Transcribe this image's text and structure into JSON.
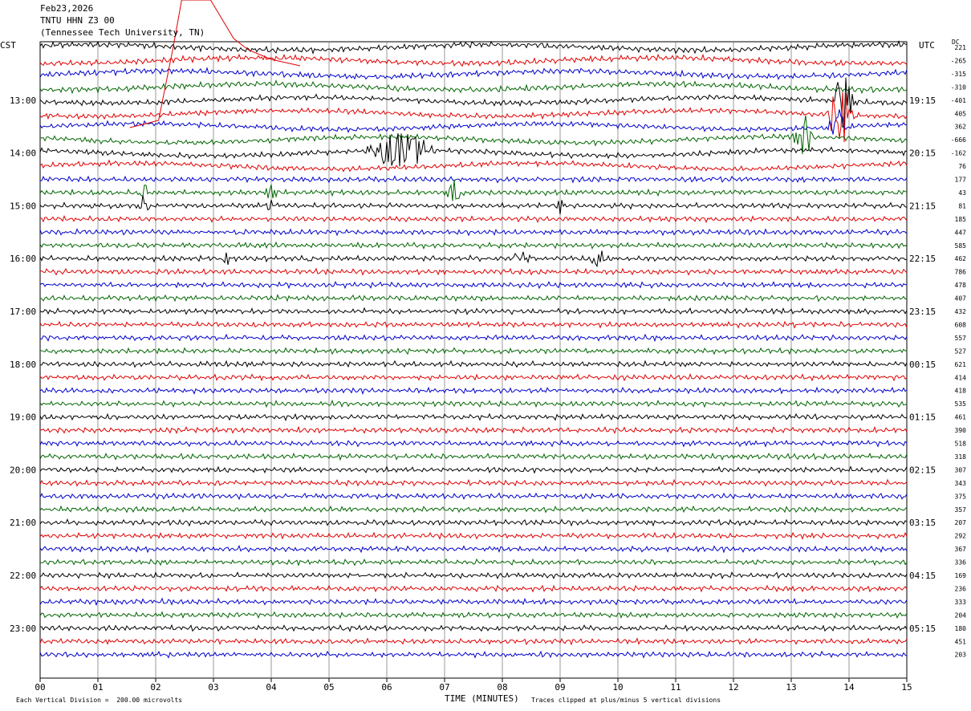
{
  "header": {
    "date": "Feb23,2026",
    "station": "TNTU HHN Z3 00",
    "location": "(Tennessee Tech University, TN)"
  },
  "axes": {
    "left_tz": "CST",
    "right_tz": "UTC",
    "dc_label": "DC",
    "xlabel": "TIME (MINUTES)",
    "left_hours": [
      "13:00",
      "14:00",
      "15:00",
      "16:00",
      "17:00",
      "18:00",
      "19:00",
      "20:00",
      "21:00",
      "22:00",
      "23:00"
    ],
    "right_hours": [
      "19:15",
      "20:15",
      "21:15",
      "22:15",
      "23:15",
      "00:15",
      "01:15",
      "02:15",
      "03:15",
      "04:15",
      "05:15"
    ],
    "x_ticks": [
      "00",
      "01",
      "02",
      "03",
      "04",
      "05",
      "06",
      "07",
      "08",
      "09",
      "10",
      "11",
      "12",
      "13",
      "14",
      "15"
    ]
  },
  "footer": {
    "scale_note": "Each Vertical Division =  200.00 microvolts",
    "clip_note": "Traces clipped at plus/minus 5 vertical divisions"
  },
  "colors": {
    "trace_cycle": [
      "#000000",
      "#e00000",
      "#0000cc",
      "#006600"
    ],
    "grid": "#808080"
  },
  "chart_data": {
    "type": "line",
    "title": "TNTU HHN Z3 00",
    "xlabel": "TIME (MINUTES)",
    "xlim": [
      0,
      15
    ],
    "rows_per_hour": 4,
    "row_count": 47,
    "dc_offsets": [
      "221",
      "-265",
      "-315",
      "-310",
      "-401",
      "405",
      "362",
      "-666",
      "-162",
      "76",
      "177",
      "43",
      "81",
      "185",
      "447",
      "585",
      "462",
      "786",
      "478",
      "407",
      "432",
      "608",
      "557",
      "527",
      "621",
      "414",
      "418",
      "535",
      "461",
      "390",
      "518",
      "318",
      "307",
      "343",
      "375",
      "357",
      "207",
      "292",
      "367",
      "336",
      "169",
      "236",
      "333",
      "204",
      "180",
      "451",
      "203"
    ],
    "events": [
      {
        "row": 4,
        "start": 13.7,
        "end": 14.1,
        "amp": 4.0
      },
      {
        "row": 5,
        "start": 13.6,
        "end": 14.1,
        "amp": 4.0
      },
      {
        "row": 6,
        "start": 13.6,
        "end": 14.0,
        "amp": 2.5
      },
      {
        "row": 7,
        "start": 13.0,
        "end": 13.4,
        "amp": 3.0
      },
      {
        "row": 8,
        "start": 5.6,
        "end": 6.9,
        "amp": 2.6
      },
      {
        "row": 11,
        "start": 7.0,
        "end": 7.3,
        "amp": 1.6
      },
      {
        "row": 11,
        "start": 1.7,
        "end": 1.9,
        "amp": 1.4
      },
      {
        "row": 11,
        "start": 3.9,
        "end": 4.1,
        "amp": 1.2
      },
      {
        "row": 12,
        "start": 1.7,
        "end": 1.9,
        "amp": 1.6
      },
      {
        "row": 12,
        "start": 3.9,
        "end": 4.1,
        "amp": 1.4
      },
      {
        "row": 12,
        "start": 8.9,
        "end": 9.1,
        "amp": 1.0
      },
      {
        "row": 16,
        "start": 3.1,
        "end": 3.3,
        "amp": 1.2
      },
      {
        "row": 16,
        "start": 8.2,
        "end": 8.5,
        "amp": 1.8
      },
      {
        "row": 16,
        "start": 9.5,
        "end": 9.8,
        "amp": 1.2
      },
      {
        "row": 16,
        "start": 4.5,
        "end": 4.7,
        "amp": 0.8
      }
    ],
    "large_excursion": {
      "row": 1,
      "description": "clipped red trace 01-03 min"
    }
  }
}
